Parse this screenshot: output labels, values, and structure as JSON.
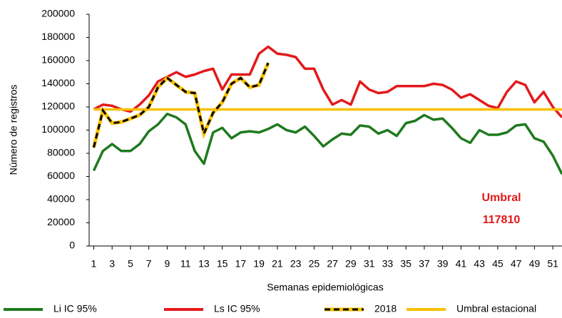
{
  "chart_data": {
    "type": "line",
    "x_label": "Semanas epidemiológicas",
    "y_label": "Número de registros",
    "x": [
      1,
      2,
      3,
      4,
      5,
      6,
      7,
      8,
      9,
      10,
      11,
      12,
      13,
      14,
      15,
      16,
      17,
      18,
      19,
      20,
      21,
      22,
      23,
      24,
      25,
      26,
      27,
      28,
      29,
      30,
      31,
      32,
      33,
      34,
      35,
      36,
      37,
      38,
      39,
      40,
      41,
      42,
      43,
      44,
      45,
      46,
      47,
      48,
      49,
      50,
      51,
      52
    ],
    "xlim": [
      0.5,
      52
    ],
    "xticks": [
      1,
      3,
      5,
      7,
      9,
      11,
      13,
      15,
      17,
      19,
      21,
      23,
      25,
      27,
      29,
      31,
      33,
      35,
      37,
      39,
      41,
      43,
      45,
      47,
      49,
      51
    ],
    "ylim": [
      0,
      200000
    ],
    "yticks": [
      0,
      20000,
      40000,
      60000,
      80000,
      100000,
      120000,
      140000,
      160000,
      180000,
      200000
    ],
    "grid": false,
    "legend": "bottom",
    "series": [
      {
        "name": "Li IC 95%",
        "color": "#1e7a1e",
        "dash": false,
        "values": [
          65000,
          82000,
          88000,
          82000,
          82000,
          88000,
          99000,
          105000,
          114000,
          111000,
          105000,
          82000,
          71000,
          98000,
          102000,
          93000,
          98000,
          99000,
          98000,
          101000,
          105000,
          100000,
          98000,
          103000,
          95000,
          86000,
          92000,
          97000,
          96000,
          104000,
          103000,
          97000,
          100000,
          95000,
          106000,
          108000,
          113000,
          109000,
          110000,
          102000,
          93000,
          89000,
          100000,
          96000,
          96000,
          98000,
          104000,
          105000,
          93000,
          90000,
          78000,
          62000
        ]
      },
      {
        "name": "Ls IC 95%",
        "color": "#e3191b",
        "dash": false,
        "values": [
          118000,
          122000,
          121000,
          118000,
          116000,
          122000,
          130000,
          142000,
          146000,
          150000,
          146000,
          148000,
          151000,
          153000,
          135000,
          148000,
          148000,
          148000,
          166000,
          172000,
          166000,
          165000,
          163000,
          153000,
          153000,
          135000,
          122000,
          126000,
          122000,
          142000,
          135000,
          132000,
          133000,
          138000,
          138000,
          138000,
          138000,
          140000,
          139000,
          135000,
          128000,
          131000,
          126000,
          121000,
          119000,
          133000,
          142000,
          139000,
          124000,
          133000,
          120000,
          111000
        ]
      },
      {
        "name": "2018",
        "color": "#000000",
        "dash": true,
        "values": [
          85000,
          117000,
          106000,
          107000,
          110000,
          113000,
          120000,
          137000,
          145000,
          139000,
          133000,
          132000,
          97000,
          115000,
          124000,
          140000,
          145000,
          137000,
          139000,
          158000,
          null,
          null,
          null,
          null,
          null,
          null,
          null,
          null,
          null,
          null,
          null,
          null,
          null,
          null,
          null,
          null,
          null,
          null,
          null,
          null,
          null,
          null,
          null,
          null,
          null,
          null,
          null,
          null,
          null,
          null,
          null,
          null
        ]
      },
      {
        "name": "Umbral estacional",
        "color": "#f9c000",
        "dash": false,
        "values": [
          117810,
          117810,
          117810,
          117810,
          117810,
          117810,
          117810,
          117810,
          117810,
          117810,
          117810,
          117810,
          117810,
          117810,
          117810,
          117810,
          117810,
          117810,
          117810,
          117810,
          117810,
          117810,
          117810,
          117810,
          117810,
          117810,
          117810,
          117810,
          117810,
          117810,
          117810,
          117810,
          117810,
          117810,
          117810,
          117810,
          117810,
          117810,
          117810,
          117810,
          117810,
          117810,
          117810,
          117810,
          117810,
          117810,
          117810,
          117810,
          117810,
          117810,
          117810,
          117810
        ]
      }
    ],
    "annotation": {
      "text": "Umbral",
      "value": 117810,
      "color": "#e3191b"
    }
  }
}
